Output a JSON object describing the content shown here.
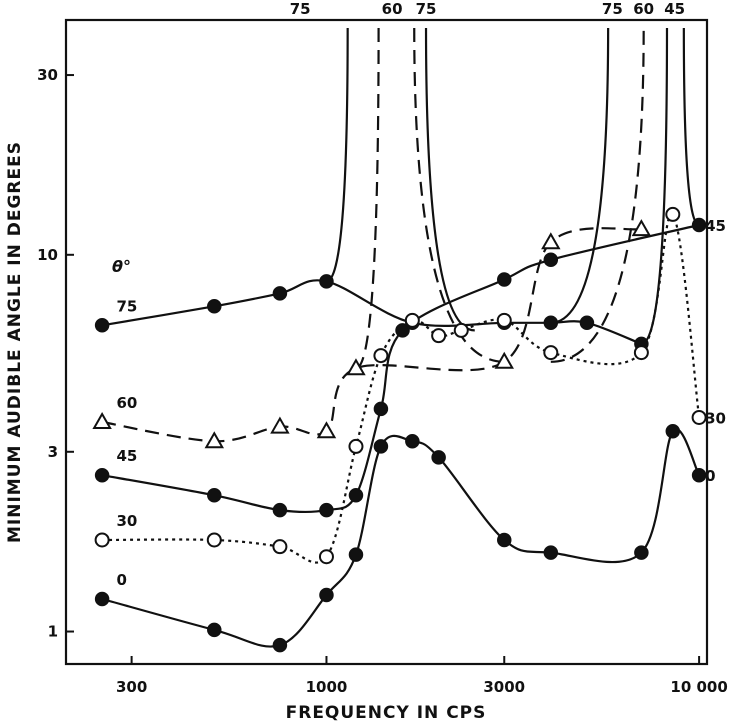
{
  "chart_data": {
    "type": "line",
    "title": "",
    "xlabel": "FREQUENCY IN CPS",
    "ylabel": "MINIMUM AUDIBLE ANGLE IN DEGREES",
    "x_scale": "log",
    "y_scale": "log",
    "xlim": [
      200,
      10500
    ],
    "ylim": [
      0.82,
      42
    ],
    "x_ticks": [
      {
        "value": 300,
        "label": "300"
      },
      {
        "value": 1000,
        "label": "1000"
      },
      {
        "value": 3000,
        "label": "3000"
      },
      {
        "value": 10000,
        "label": "10 000"
      }
    ],
    "y_ticks": [
      {
        "value": 1,
        "label": "1"
      },
      {
        "value": 3,
        "label": "3"
      },
      {
        "value": 10,
        "label": "10"
      },
      {
        "value": 30,
        "label": "30"
      }
    ],
    "legend_title": "θ°",
    "top_labels": [
      {
        "x": 850,
        "label": "75"
      },
      {
        "x": 1500,
        "label": "60"
      },
      {
        "x": 1850,
        "label": "75"
      },
      {
        "x": 5850,
        "label": "75"
      },
      {
        "x": 7100,
        "label": "60"
      },
      {
        "x": 8600,
        "label": "45"
      }
    ],
    "series": [
      {
        "name": "75",
        "marker": "filled-circle",
        "dash": "solid",
        "x": [
          250,
          500,
          750,
          1000,
          1700,
          3000,
          4000,
          5000,
          7000
        ],
        "y": [
          6.5,
          7.3,
          7.9,
          8.5,
          6.6,
          6.6,
          6.6,
          6.6,
          5.8
        ],
        "label_at": {
          "x": 280,
          "label": "75"
        },
        "right_label": ""
      },
      {
        "name": "60",
        "marker": "open-triangle",
        "dash": "dashed",
        "x": [
          250,
          500,
          750,
          1000,
          1200,
          3000,
          4000,
          7000
        ],
        "y": [
          3.6,
          3.2,
          3.5,
          3.4,
          5.0,
          5.2,
          10.8,
          11.7
        ],
        "label_at": {
          "x": 280,
          "label": "60"
        },
        "right_label": ""
      },
      {
        "name": "45",
        "marker": "filled-circle",
        "dash": "solid",
        "x": [
          250,
          500,
          750,
          1000,
          1200,
          1400,
          1600,
          3000,
          4000,
          10000
        ],
        "y": [
          2.6,
          2.3,
          2.1,
          2.1,
          2.3,
          3.9,
          6.3,
          8.6,
          9.7,
          12.0
        ],
        "label_at": {
          "x": 280,
          "label": "45"
        },
        "right_label": "45"
      },
      {
        "name": "30",
        "marker": "open-circle",
        "dash": "dotted",
        "x": [
          250,
          500,
          750,
          1000,
          1200,
          1400,
          1700,
          2000,
          2300,
          3000,
          4000,
          7000,
          8500,
          10000
        ],
        "y": [
          1.75,
          1.75,
          1.68,
          1.58,
          3.1,
          5.4,
          6.7,
          6.1,
          6.3,
          6.7,
          5.5,
          5.5,
          12.8,
          3.7
        ],
        "label_at": {
          "x": 280,
          "label": "30"
        },
        "right_label": "30"
      },
      {
        "name": "0",
        "marker": "filled-circle",
        "dash": "solid",
        "x": [
          250,
          500,
          750,
          1000,
          1200,
          1400,
          1700,
          2000,
          3000,
          4000,
          7000,
          8500,
          10000
        ],
        "y": [
          1.22,
          1.01,
          0.92,
          1.25,
          1.6,
          3.1,
          3.2,
          2.9,
          1.75,
          1.62,
          1.62,
          3.4,
          2.6
        ],
        "label_at": {
          "x": 280,
          "label": "0"
        },
        "right_label": "0"
      }
    ],
    "grid": false,
    "legend": "inline labels"
  }
}
